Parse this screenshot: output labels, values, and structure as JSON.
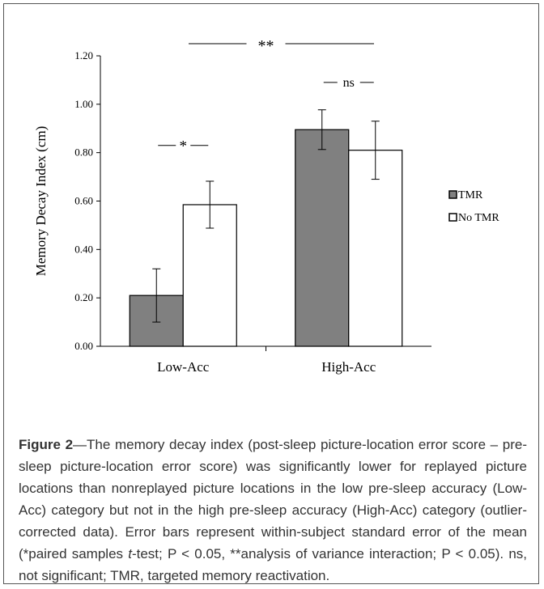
{
  "chart_data": {
    "type": "bar",
    "categories": [
      "Low-Acc",
      "High-Acc"
    ],
    "series": [
      {
        "name": "TMR",
        "values": [
          0.21,
          0.895
        ],
        "error": [
          0.11,
          0.082
        ],
        "color": "#808080"
      },
      {
        "name": "No TMR",
        "values": [
          0.585,
          0.81
        ],
        "error": [
          0.097,
          0.12
        ],
        "color": "#ffffff"
      }
    ],
    "ylabel": "Memory Decay Index (cm)",
    "xlabel": "",
    "ylim": [
      0,
      1.2
    ],
    "yticks": [
      "0.00",
      "0.20",
      "0.40",
      "0.60",
      "0.80",
      "1.00",
      "1.20"
    ],
    "legend_position": "right",
    "annotations": {
      "low_pair": "*",
      "high_pair": "ns",
      "interaction": "**"
    }
  },
  "caption": {
    "label": "Figure 2",
    "text_1": "—The memory decay index (post-sleep picture-location error score – pre-sleep picture-location error score) was significantly lower for replayed picture locations than nonreplayed picture locations in the low pre-sleep accuracy (Low-Acc) category but not in the high pre-sleep accuracy (High-Acc) category (outlier-corrected data). Error bars represent within-subject standard error of the mean (*paired samples ",
    "italic_t": "t",
    "text_2": "-test; P < 0.05, **analysis of variance interaction; P < 0.05). ns, not significant; TMR, targeted memory reactivation."
  }
}
